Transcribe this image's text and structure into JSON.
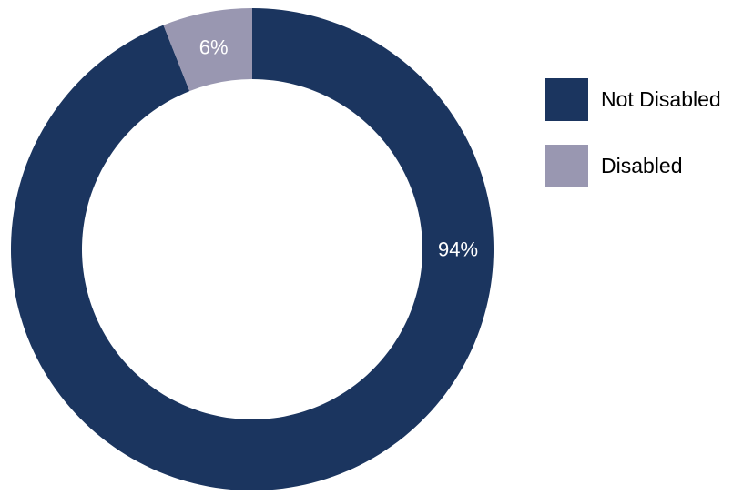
{
  "chart_data": {
    "type": "pie",
    "donut": true,
    "title": "",
    "series": [
      {
        "name": "Not Disabled",
        "value": 94,
        "label": "94%",
        "color": "#1B355F"
      },
      {
        "name": "Disabled",
        "value": 6,
        "label": "6%",
        "color": "#9997B1"
      }
    ],
    "start_angle_deg": 0,
    "direction": "clockwise",
    "label_color": "#FFFFFF",
    "legend_position": "right"
  }
}
